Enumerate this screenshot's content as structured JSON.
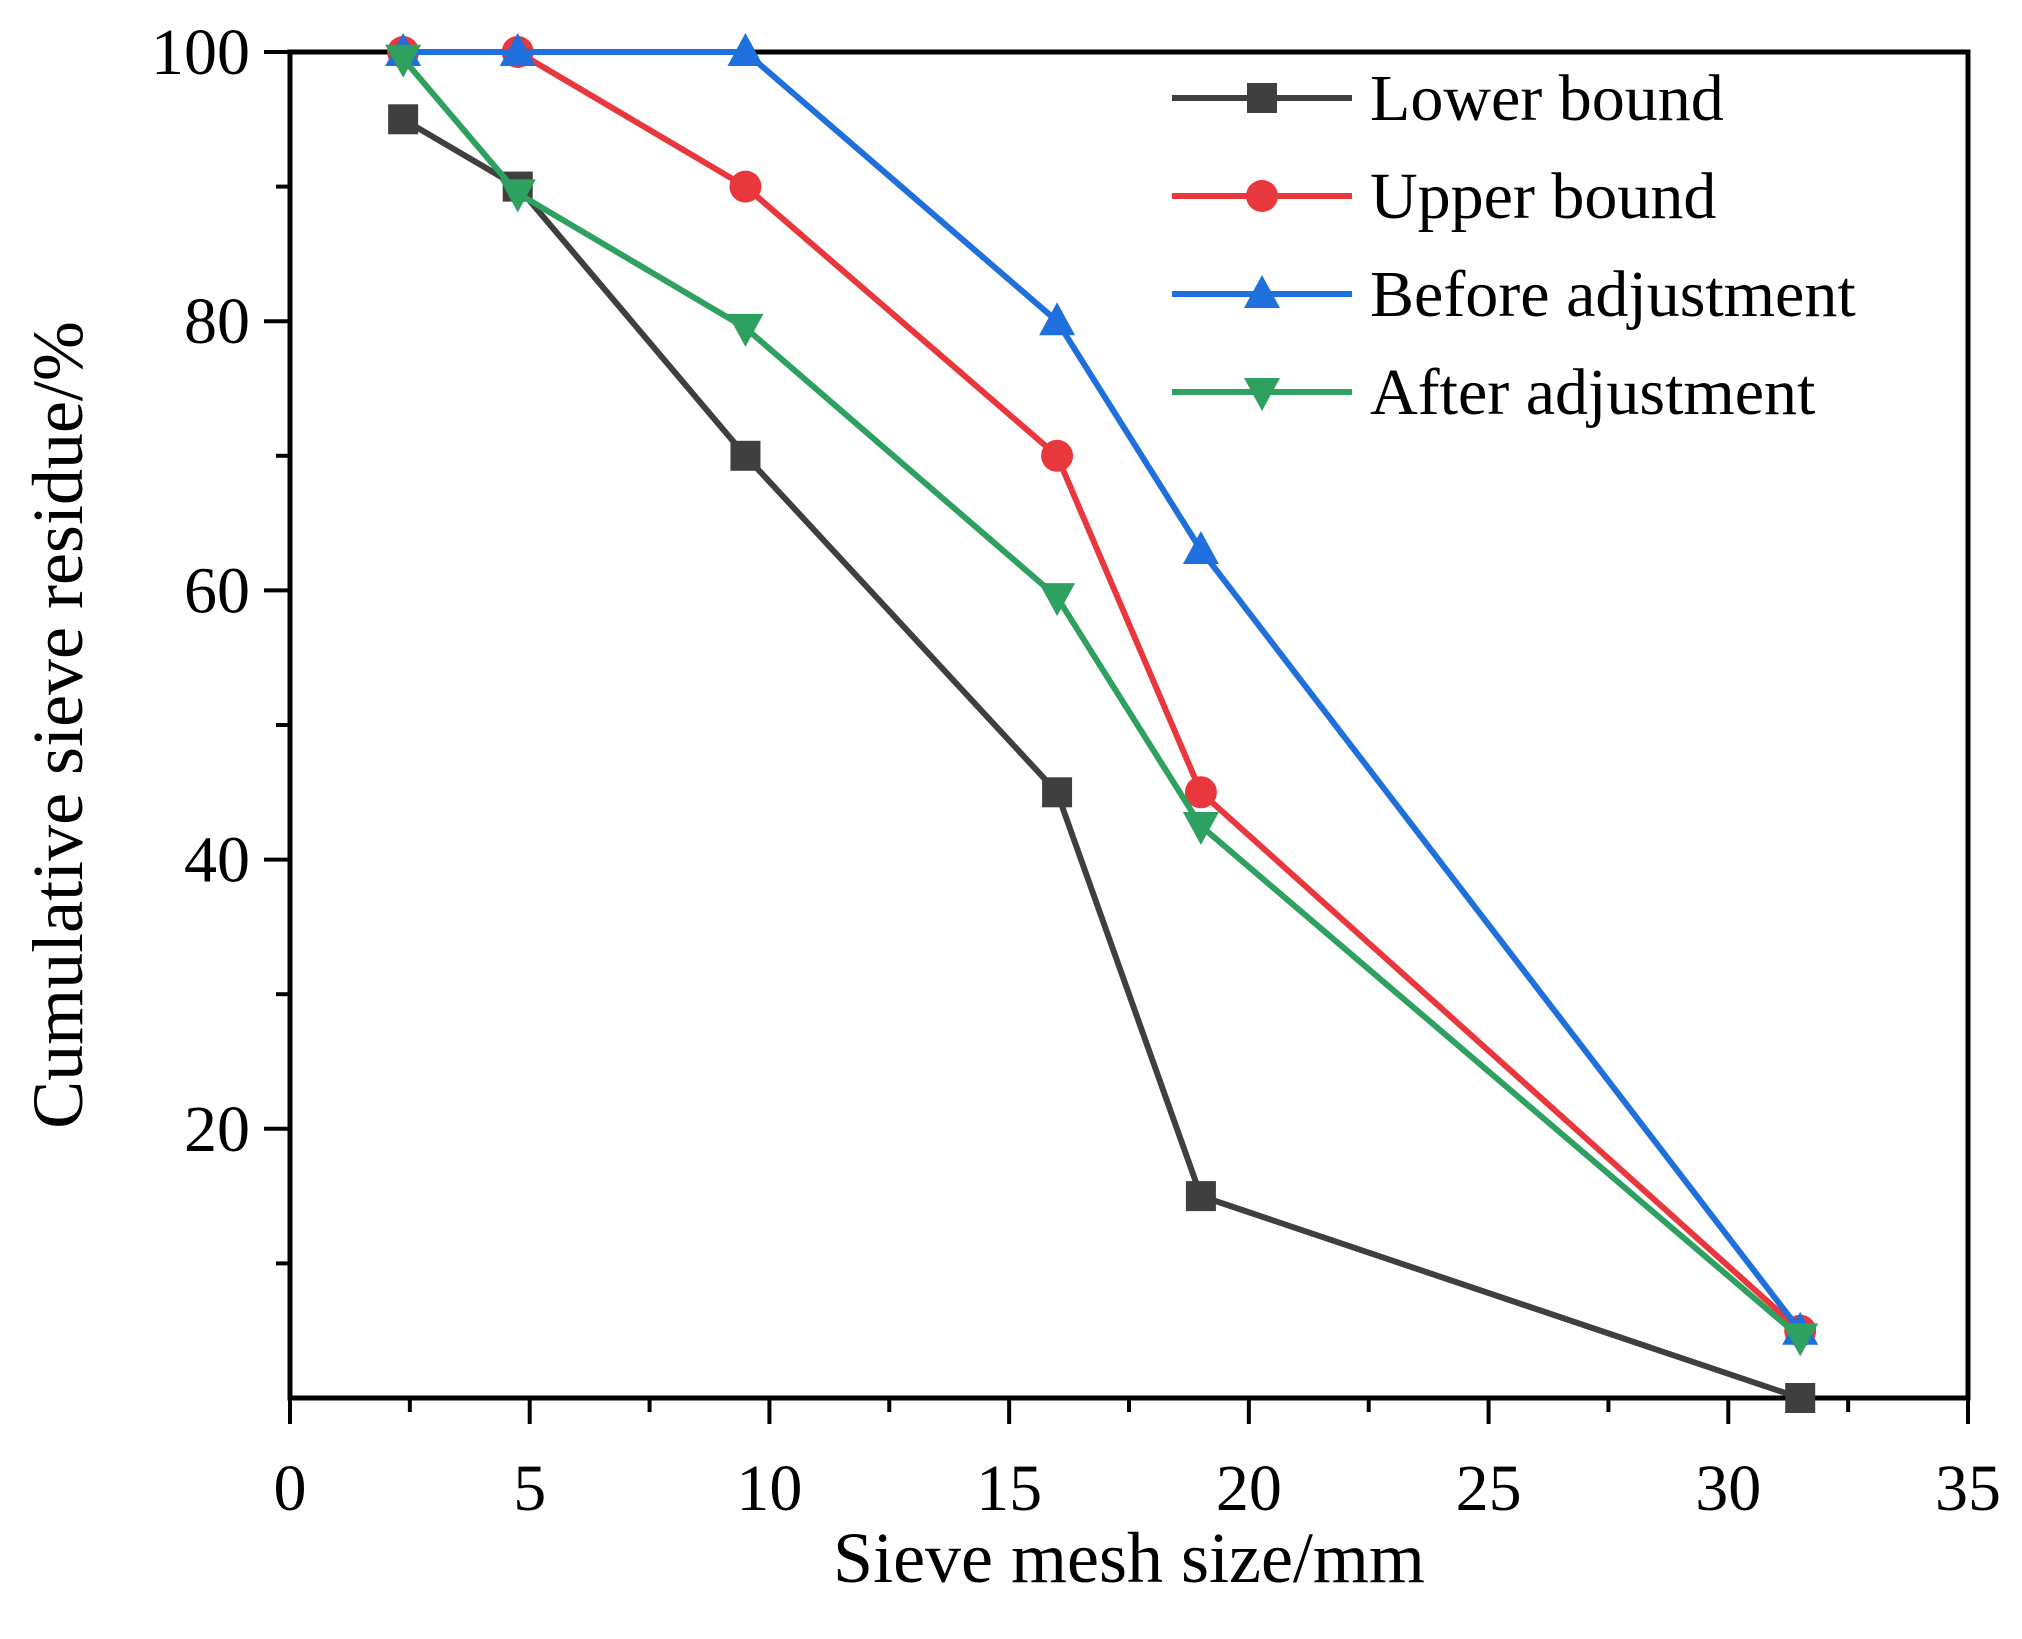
{
  "chart_data": {
    "type": "line",
    "title": "",
    "xlabel": "Sieve mesh size/mm",
    "ylabel": "Cumulative sieve residue/%",
    "xlim": [
      0,
      35
    ],
    "ylim": [
      0,
      100
    ],
    "x_ticks": [
      0,
      5,
      10,
      15,
      20,
      25,
      30,
      35
    ],
    "y_ticks": [
      20,
      40,
      60,
      80,
      100
    ],
    "x": [
      2.36,
      4.75,
      9.5,
      16,
      19,
      31.5
    ],
    "grid": false,
    "legend_position": "top-right",
    "series": [
      {
        "name": "Lower bound",
        "color": "#3f3f3f",
        "marker": "square",
        "values": [
          95,
          90,
          70,
          45,
          15,
          0
        ]
      },
      {
        "name": "Upper bound",
        "color": "#e8383d",
        "marker": "circle",
        "values": [
          100,
          100,
          90,
          70,
          45,
          5
        ]
      },
      {
        "name": "Before adjustment",
        "color": "#1f6fdc",
        "marker": "triangle-up",
        "values": [
          100,
          100,
          100,
          80,
          63,
          5
        ]
      },
      {
        "name": "After adjustment",
        "color": "#2ea05f",
        "marker": "triangle-down",
        "values": [
          99.5,
          89.5,
          79.5,
          59.5,
          42.5,
          4.5
        ]
      }
    ]
  }
}
